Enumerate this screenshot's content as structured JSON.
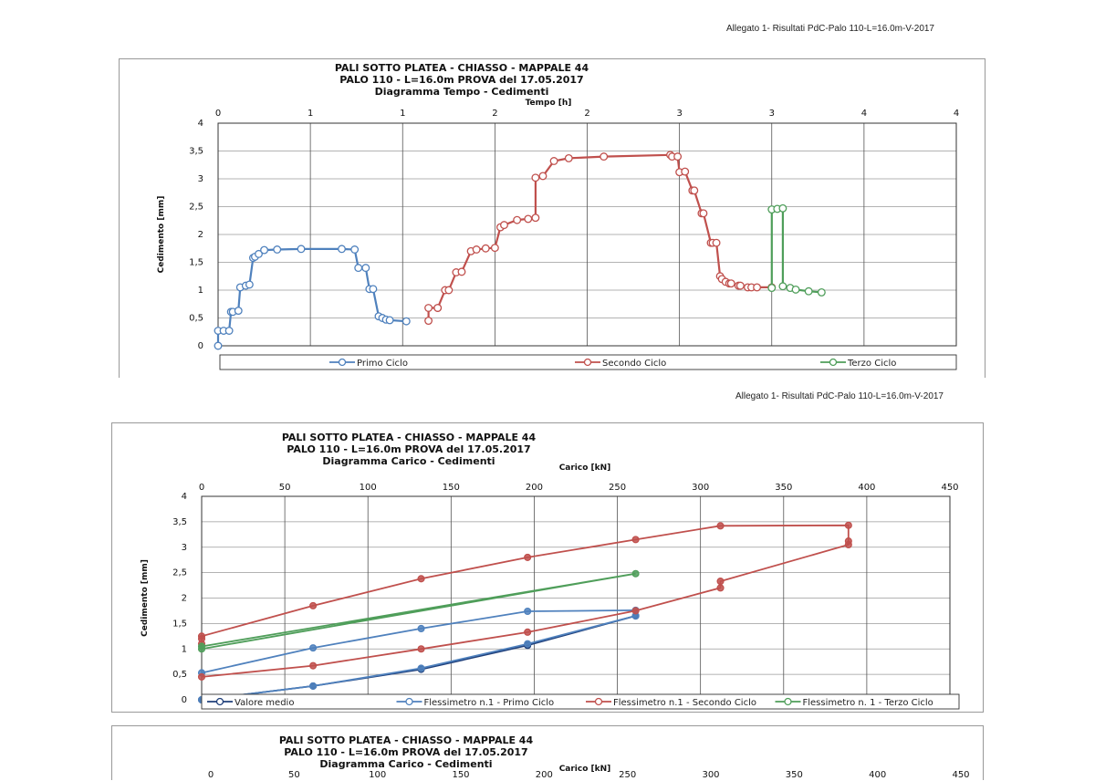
{
  "page": {
    "header_top": "Allegato 1- Risultati PdC-Palo 110-L=16.0m-V-2017",
    "header_mid": "Allegato 1- Risultati PdC-Palo 110-L=16.0m-V-2017"
  },
  "chart_data": [
    {
      "type": "line",
      "title": "PALI SOTTO PLATEA - CHIASSO - MAPPALE 44",
      "subtitle1": "PALO  110 - L=16.0m         PROVA del  17.05.2017",
      "subtitle2": "Diagramma Tempo - Cedimenti",
      "xlabel": "Tempo [h]",
      "ylabel": "Cedimento [mm]",
      "xlim": [
        0,
        4
      ],
      "ylim": [
        0,
        4
      ],
      "x_axis_position": "top",
      "y_reversed": false,
      "grid": true,
      "xticks": [
        "0",
        "1",
        "1",
        "2",
        "2",
        "3",
        "3",
        "4",
        "4"
      ],
      "yticks": [
        "0",
        "0,5",
        "1",
        "1,5",
        "2",
        "2,5",
        "3",
        "3,5",
        "4"
      ],
      "legend": "bottom",
      "series": [
        {
          "name": "Primo Ciclo",
          "color": "#4f81bd",
          "x": [
            0,
            0,
            0.03,
            0.06,
            0.07,
            0.08,
            0.11,
            0.12,
            0.15,
            0.17,
            0.19,
            0.2,
            0.22,
            0.25,
            0.32,
            0.45,
            0.67,
            0.74,
            0.76,
            0.8,
            0.82,
            0.84,
            0.87,
            0.89,
            0.91,
            0.93,
            1.02
          ],
          "y": [
            0,
            0.27,
            0.27,
            0.27,
            0.61,
            0.61,
            0.63,
            1.05,
            1.08,
            1.1,
            1.58,
            1.6,
            1.65,
            1.72,
            1.73,
            1.74,
            1.74,
            1.73,
            1.4,
            1.4,
            1.02,
            1.02,
            0.53,
            0.5,
            0.47,
            0.46,
            0.44
          ]
        },
        {
          "name": "Secondo Ciclo",
          "color": "#c0504d",
          "x": [
            1.14,
            1.14,
            1.19,
            1.19,
            1.23,
            1.25,
            1.29,
            1.32,
            1.37,
            1.4,
            1.45,
            1.5,
            1.53,
            1.55,
            1.62,
            1.68,
            1.72,
            1.72,
            1.76,
            1.82,
            1.9,
            2.09,
            2.45,
            2.46,
            2.49,
            2.5,
            2.53,
            2.57,
            2.58,
            2.62,
            2.63,
            2.67,
            2.68,
            2.7,
            2.72,
            2.73,
            2.75,
            2.77,
            2.78,
            2.82,
            2.83,
            2.87,
            2.89,
            2.92,
            3.0
          ],
          "y": [
            0.45,
            0.68,
            0.68,
            0.68,
            1.0,
            1.0,
            1.32,
            1.33,
            1.7,
            1.73,
            1.75,
            1.76,
            2.13,
            2.17,
            2.26,
            2.28,
            2.3,
            3.02,
            3.05,
            3.32,
            3.37,
            3.4,
            3.43,
            3.4,
            3.4,
            3.12,
            3.13,
            2.79,
            2.79,
            2.38,
            2.38,
            1.85,
            1.85,
            1.85,
            1.25,
            1.2,
            1.15,
            1.12,
            1.12,
            1.08,
            1.08,
            1.05,
            1.05,
            1.05,
            1.05
          ]
        },
        {
          "name": "Terzo Ciclo",
          "color": "#4f9e5a",
          "x": [
            3.0,
            3.0,
            3.03,
            3.06,
            3.06,
            3.1,
            3.13,
            3.2,
            3.27
          ],
          "y": [
            1.04,
            2.45,
            2.46,
            2.47,
            1.07,
            1.04,
            1.01,
            0.98,
            0.96
          ]
        }
      ]
    },
    {
      "type": "line",
      "title": "PALI SOTTO PLATEA - CHIASSO - MAPPALE 44",
      "subtitle1": "PALO  110 - L=16.0m         PROVA del  17.05.2017",
      "subtitle2": "Diagramma Carico - Cedimenti",
      "xlabel": "Carico [kN]",
      "ylabel": "Cedimento [mm]",
      "xlim": [
        0,
        450
      ],
      "ylim": [
        0,
        4
      ],
      "x_axis_position": "top",
      "grid": true,
      "xticks": [
        "0",
        "50",
        "100",
        "150",
        "200",
        "250",
        "300",
        "350",
        "400",
        "450"
      ],
      "yticks": [
        "0",
        "0,5",
        "1",
        "1,5",
        "2",
        "2,5",
        "3",
        "3,5",
        "4"
      ],
      "legend": "bottom",
      "series": [
        {
          "name": "Valore medio",
          "color": "#1f3f7a",
          "x": [
            0,
            67,
            132,
            196,
            261
          ],
          "y": [
            0,
            0.27,
            0.6,
            1.07,
            1.65
          ]
        },
        {
          "name": "Flessimetro n.1 - Primo Ciclo",
          "color": "#4f81bd",
          "x": [
            0,
            67,
            132,
            196,
            261,
            261,
            196,
            132,
            67,
            0
          ],
          "y": [
            0,
            0.27,
            0.62,
            1.1,
            1.65,
            1.76,
            1.74,
            1.4,
            1.02,
            0.53
          ]
        },
        {
          "name": "Flessimetro n.1 - Secondo Ciclo",
          "color": "#c0504d",
          "x": [
            0,
            67,
            132,
            196,
            261,
            312,
            312,
            389,
            389,
            389,
            312,
            261,
            196,
            132,
            67,
            0,
            0,
            0
          ],
          "y": [
            0.45,
            0.67,
            1.0,
            1.33,
            1.75,
            2.2,
            2.33,
            3.05,
            3.12,
            3.43,
            3.42,
            3.15,
            2.8,
            2.38,
            1.85,
            1.25,
            1.2,
            1.1
          ]
        },
        {
          "name": "Flessimetro n. 1 - Terzo Ciclo",
          "color": "#4f9e5a",
          "x": [
            0,
            261,
            0
          ],
          "y": [
            1.0,
            2.48,
            1.05
          ]
        }
      ]
    },
    {
      "type": "line",
      "title": "PALI SOTTO PLATEA - CHIASSO - MAPPALE 44",
      "subtitle1": "PALO  110 - L=16.0m         PROVA del  17.05.2017",
      "subtitle2": "Diagramma Carico - Cedimenti",
      "xlabel": "Carico [kN]",
      "xlim": [
        0,
        450
      ],
      "x_axis_position": "top",
      "xticks": [
        "0",
        "50",
        "100",
        "150",
        "200",
        "250",
        "300",
        "350",
        "400",
        "450"
      ],
      "series": []
    }
  ]
}
